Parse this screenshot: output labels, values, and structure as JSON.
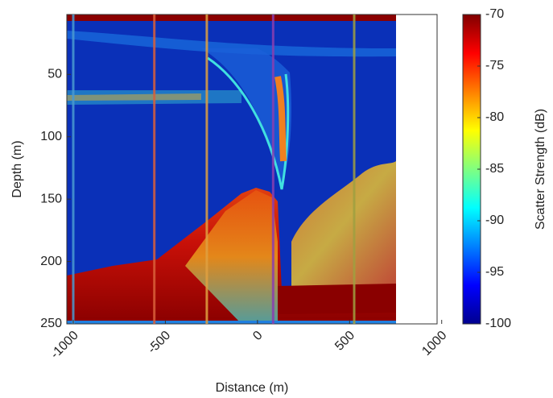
{
  "chart_data": {
    "type": "heatmap",
    "xlabel": "Distance (m)",
    "ylabel": "Depth (m)",
    "colorbar_label": "Scatter Strength (dB)",
    "colormap": "jet",
    "xlim": [
      -1035,
      975
    ],
    "xticks": [
      -1000,
      -500,
      0,
      500,
      1000
    ],
    "ylim": [
      2,
      250
    ],
    "yticks": [
      50,
      100,
      150,
      200,
      250
    ],
    "y_reversed": true,
    "clim": [
      -100,
      -70
    ],
    "cticks": [
      -100,
      -95,
      -90,
      -85,
      -80,
      -75,
      -70
    ],
    "vertical_lines": [
      {
        "x": -1000,
        "color": "#4a9ad0"
      },
      {
        "x": -560,
        "color": "#d9603a"
      },
      {
        "x": -275,
        "color": "#e0a040"
      },
      {
        "x": 85,
        "color": "#8a3fb0"
      },
      {
        "x": 525,
        "color": "#a0a040"
      }
    ]
  }
}
